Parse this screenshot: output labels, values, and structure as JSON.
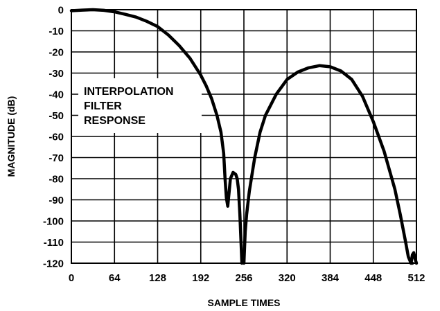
{
  "chart_data": {
    "type": "line",
    "title": "",
    "xlabel": "SAMPLE TIMES",
    "ylabel": "MAGNITUDE (dB)",
    "xlim": [
      0,
      512
    ],
    "ylim": [
      -120,
      0
    ],
    "xticks": [
      0,
      64,
      128,
      192,
      256,
      320,
      384,
      448,
      512
    ],
    "xtick_labels": [
      "0",
      "64",
      "128",
      "192",
      "256",
      "320",
      "384",
      "448",
      "512"
    ],
    "yticks": [
      0,
      -10,
      -20,
      -30,
      -40,
      -50,
      -60,
      -70,
      -80,
      -90,
      -100,
      -110,
      -120
    ],
    "ytick_labels": [
      "0",
      "-10",
      "-20",
      "-30",
      "-40",
      "-50",
      "-60",
      "-70",
      "-80",
      "-90",
      "-100",
      "-110",
      "-120"
    ],
    "grid": true,
    "legend": "none",
    "annotation": [
      "INTERPOLATION",
      "FILTER",
      "RESPONSE"
    ],
    "colors": {
      "line": "#000000",
      "grid": "#000000",
      "background": "#ffffff"
    },
    "series": [
      {
        "x": [
          0,
          16,
          32,
          48,
          64,
          80,
          96,
          112,
          128,
          144,
          160,
          176,
          192,
          200,
          208,
          216,
          222,
          226,
          228,
          230,
          232,
          236,
          240,
          244,
          246,
          248,
          250,
          252,
          253
        ],
        "y": [
          -0.5,
          -0.2,
          0,
          -0.3,
          -1,
          -2.2,
          -3.5,
          -5.5,
          -8,
          -12,
          -17,
          -23,
          -31,
          -36,
          -42,
          -50,
          -58,
          -68,
          -80,
          -89,
          -93,
          -80,
          -77,
          -78,
          -80,
          -85,
          -97,
          -112,
          -120
        ]
      },
      {
        "x": [
          256,
          258,
          260,
          264,
          272,
          280,
          288,
          304,
          320,
          336,
          352,
          368,
          384,
          400,
          416,
          432,
          448,
          464,
          480,
          488,
          496,
          500,
          504,
          506
        ],
        "y": [
          -120,
          -105,
          -97,
          -86,
          -70,
          -58,
          -50,
          -40,
          -33,
          -29.5,
          -27.5,
          -26.5,
          -27,
          -29,
          -33,
          -41,
          -53,
          -67,
          -85,
          -97,
          -110,
          -117,
          -120,
          -120
        ]
      },
      {
        "x": [
          504,
          506,
          508,
          510,
          512
        ],
        "y": [
          -120,
          -116,
          -115,
          -118,
          -120
        ]
      }
    ]
  }
}
